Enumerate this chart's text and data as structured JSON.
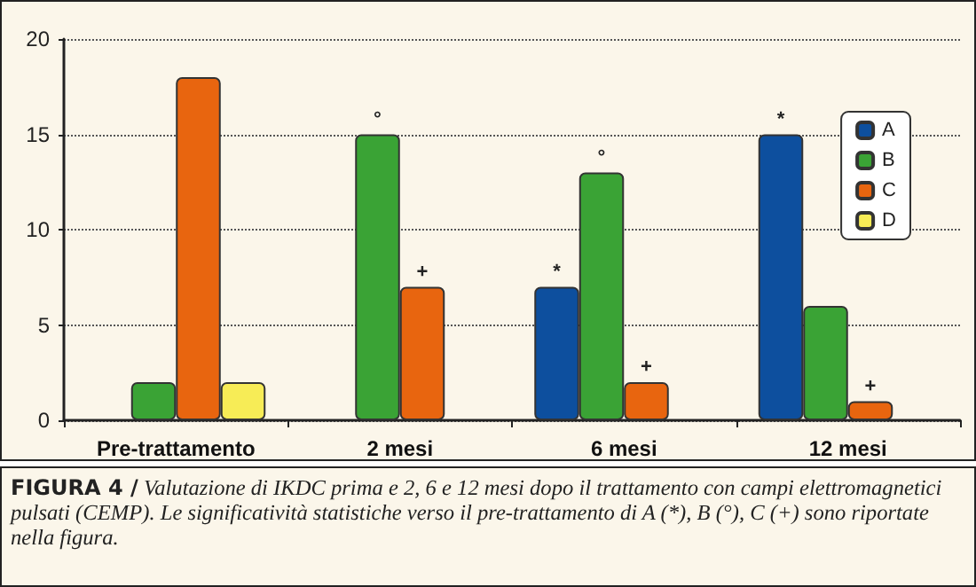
{
  "chart_data": {
    "type": "bar",
    "title": "FIGURA 4 /",
    "annotations": [
      "Valutazione di IKDC prima e 2, 6 e 12 mesi dopo il trattamento con campi elettromagnetici pulsati (CEMP). Le significatività statistiche verso il pre-trattamento di A (*), B (°), C (+) sono riportate nella figura."
    ],
    "categories": [
      "Pre-trattamento",
      "2 mesi",
      "6 mesi",
      "12 mesi"
    ],
    "series": [
      {
        "name": "A",
        "color": "#0d4f9e",
        "values": [
          null,
          null,
          7,
          15
        ],
        "value_labels": [
          null,
          null,
          "*",
          "*"
        ]
      },
      {
        "name": "B",
        "color": "#3aa335",
        "values": [
          2,
          15,
          13,
          6
        ],
        "value_labels": [
          null,
          "°",
          "°",
          null
        ]
      },
      {
        "name": "C",
        "color": "#e8650f",
        "values": [
          18,
          7,
          2,
          1
        ],
        "value_labels": [
          null,
          "+",
          "+",
          "+"
        ]
      },
      {
        "name": "D",
        "color": "#f7ec56",
        "values": [
          2,
          null,
          null,
          null
        ],
        "value_labels": [
          null,
          null,
          null,
          null
        ]
      }
    ],
    "ylim": [
      0,
      20
    ],
    "yticks": [
      0,
      5,
      10,
      15,
      20
    ],
    "grid": "y",
    "legend": "top right"
  }
}
